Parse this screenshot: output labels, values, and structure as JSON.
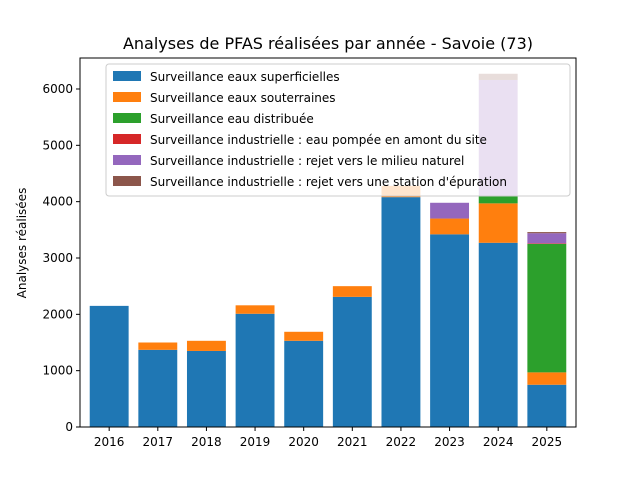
{
  "chart_data": {
    "type": "bar",
    "stacked": true,
    "title": "Analyses de PFAS réalisées par année - Savoie (73)",
    "xlabel": "",
    "ylabel": "Analyses réalisées",
    "ylim": [
      0,
      6550
    ],
    "yticks": [
      0,
      1000,
      2000,
      3000,
      4000,
      5000,
      6000
    ],
    "grid": false,
    "legend_position": "top-left",
    "categories": [
      "2016",
      "2017",
      "2018",
      "2019",
      "2020",
      "2021",
      "2022",
      "2023",
      "2024",
      "2025"
    ],
    "series": [
      {
        "name": "Surveillance eaux superficielles",
        "color": "#1f77b4",
        "values": [
          2150,
          1370,
          1350,
          2010,
          1530,
          2310,
          4080,
          3420,
          3270,
          750
        ]
      },
      {
        "name": "Surveillance eaux souterraines",
        "color": "#ff7f0e",
        "values": [
          0,
          130,
          180,
          150,
          160,
          190,
          200,
          280,
          700,
          220
        ]
      },
      {
        "name": "Surveillance eau distribuée",
        "color": "#2ca02c",
        "values": [
          0,
          0,
          0,
          0,
          0,
          0,
          0,
          0,
          140,
          2280
        ]
      },
      {
        "name": "Surveillance industrielle : eau pompée en amont du site",
        "color": "#d62728",
        "values": [
          0,
          0,
          0,
          0,
          0,
          0,
          0,
          0,
          0,
          10
        ]
      },
      {
        "name": "Surveillance industrielle : rejet vers le milieu naturel",
        "color": "#9467bd",
        "values": [
          0,
          0,
          0,
          0,
          0,
          0,
          0,
          280,
          2050,
          180
        ]
      },
      {
        "name": "Surveillance industrielle : rejet vers une station d'épuration",
        "color": "#8c564b",
        "values": [
          0,
          0,
          0,
          0,
          0,
          0,
          0,
          0,
          110,
          20
        ]
      }
    ]
  }
}
